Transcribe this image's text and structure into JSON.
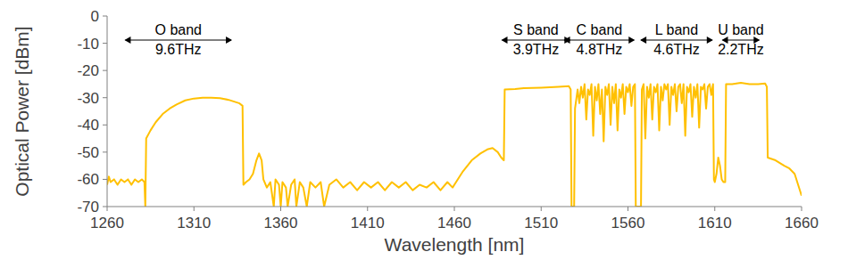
{
  "chart_data": {
    "type": "line",
    "x_label": "Wavelength [nm]",
    "y_label": "Optical Power [dBm]",
    "color": "#ffc000",
    "xlim": [
      1260,
      1660
    ],
    "xticks": [
      1260,
      1310,
      1360,
      1410,
      1460,
      1510,
      1560,
      1610,
      1660
    ],
    "ylim": [
      -70,
      0
    ],
    "yticks": [
      -70,
      -60,
      -50,
      -40,
      -30,
      -20,
      -10,
      0
    ],
    "grid": false,
    "annotations": [
      {
        "text": "O band",
        "subtext": "9.6THz",
        "x_start": 1270,
        "x_end": 1332
      },
      {
        "text": "S band",
        "subtext": "3.9THz",
        "x_start": 1487,
        "x_end": 1527
      },
      {
        "text": "C band",
        "subtext": "4.8THz",
        "x_start": 1523,
        "x_end": 1564
      },
      {
        "text": "L band",
        "subtext": "4.6THz",
        "x_start": 1567,
        "x_end": 1609
      },
      {
        "text": "U band",
        "subtext": "2.2THz",
        "x_start": 1614,
        "x_end": 1636
      }
    ],
    "x": [
      1260,
      1261,
      1262,
      1264,
      1266,
      1268,
      1270,
      1272,
      1274,
      1276,
      1278,
      1280,
      1281.5,
      1282,
      1282.5,
      1285,
      1288,
      1292,
      1296,
      1300,
      1305,
      1310,
      1315,
      1320,
      1325,
      1330,
      1336,
      1338,
      1338.5,
      1340,
      1342,
      1344,
      1346,
      1347.5,
      1349,
      1350,
      1352,
      1354,
      1356,
      1357,
      1359,
      1360,
      1361,
      1363,
      1364,
      1366,
      1368,
      1369,
      1371,
      1373,
      1375,
      1377,
      1380,
      1383,
      1385,
      1388,
      1392,
      1396,
      1400,
      1404,
      1408,
      1412,
      1416,
      1420,
      1424,
      1428,
      1432,
      1436,
      1440,
      1444,
      1448,
      1452,
      1456,
      1459,
      1460,
      1465,
      1470,
      1475,
      1479,
      1482,
      1485,
      1487,
      1488.5,
      1489,
      1495,
      1500,
      1510,
      1520,
      1526,
      1527,
      1527.5,
      1529,
      1529.5,
      1531,
      1532,
      1533,
      1534,
      1535,
      1536,
      1537,
      1538,
      1539,
      1540,
      1541,
      1542,
      1543,
      1544,
      1545,
      1546,
      1547,
      1548,
      1549,
      1550,
      1551,
      1552,
      1553,
      1554,
      1555,
      1556,
      1557,
      1558,
      1559,
      1560,
      1561,
      1562,
      1563,
      1564,
      1564.5,
      1567.5,
      1568,
      1569,
      1570,
      1571,
      1572,
      1573,
      1574,
      1575,
      1576,
      1577,
      1578,
      1579,
      1580,
      1581,
      1582,
      1583,
      1584,
      1585,
      1586,
      1587,
      1588,
      1589,
      1590,
      1591,
      1592,
      1593,
      1594,
      1595,
      1596,
      1597,
      1598,
      1599,
      1600,
      1601,
      1602,
      1603,
      1604,
      1605,
      1606,
      1607,
      1608,
      1609,
      1609.5,
      1610,
      1611,
      1612,
      1613,
      1614,
      1615,
      1616,
      1616.5,
      1620,
      1625,
      1630,
      1635,
      1639,
      1640,
      1640.5,
      1645,
      1650,
      1653,
      1656,
      1658,
      1660
    ],
    "values": [
      -62,
      -59,
      -61,
      -60,
      -62,
      -60,
      -61,
      -60,
      -62,
      -60,
      -61,
      -60,
      -61,
      -70,
      -45,
      -42,
      -39,
      -36,
      -34,
      -32.5,
      -31,
      -30.3,
      -30,
      -30,
      -30.2,
      -30.8,
      -32,
      -33,
      -62,
      -61,
      -60,
      -58,
      -53,
      -50.5,
      -53,
      -60,
      -63,
      -61,
      -70,
      -60,
      -62,
      -70,
      -61,
      -63,
      -70,
      -62,
      -60,
      -70,
      -61,
      -63,
      -70,
      -61,
      -63,
      -61,
      -70,
      -62,
      -60,
      -63,
      -61,
      -64,
      -61,
      -63,
      -61,
      -64,
      -61,
      -63,
      -61,
      -64,
      -62,
      -63,
      -61,
      -64,
      -61,
      -63,
      -62,
      -57,
      -53,
      -50.5,
      -49,
      -48.5,
      -50,
      -52,
      -53,
      -27,
      -26.8,
      -26.5,
      -26.3,
      -26,
      -25.8,
      -27,
      -70,
      -70,
      -34,
      -27,
      -32,
      -26,
      -30,
      -25,
      -38,
      -27,
      -29,
      -25,
      -44,
      -26,
      -31,
      -25,
      -36,
      -27,
      -46,
      -26,
      -29,
      -25,
      -40,
      -26,
      -32,
      -25,
      -42,
      -27,
      -30,
      -25,
      -36,
      -26,
      -28,
      -25,
      -33,
      -26,
      -25,
      -70,
      -70,
      -27,
      -25,
      -45,
      -26,
      -30,
      -25,
      -38,
      -26,
      -28,
      -25,
      -42,
      -26,
      -31,
      -25,
      -27,
      -25,
      -40,
      -26,
      -29,
      -25,
      -35,
      -26,
      -25,
      -32,
      -25,
      -44,
      -26,
      -28,
      -25,
      -37,
      -26,
      -30,
      -25,
      -41,
      -26,
      -27,
      -25,
      -34,
      -26,
      -25,
      -29,
      -25,
      -60,
      -61,
      -58,
      -52,
      -55,
      -60,
      -61,
      -61,
      -25,
      -25,
      -24.5,
      -25,
      -25,
      -24.8,
      -26,
      -52,
      -53,
      -55,
      -56,
      -58,
      -62,
      -66
    ]
  }
}
